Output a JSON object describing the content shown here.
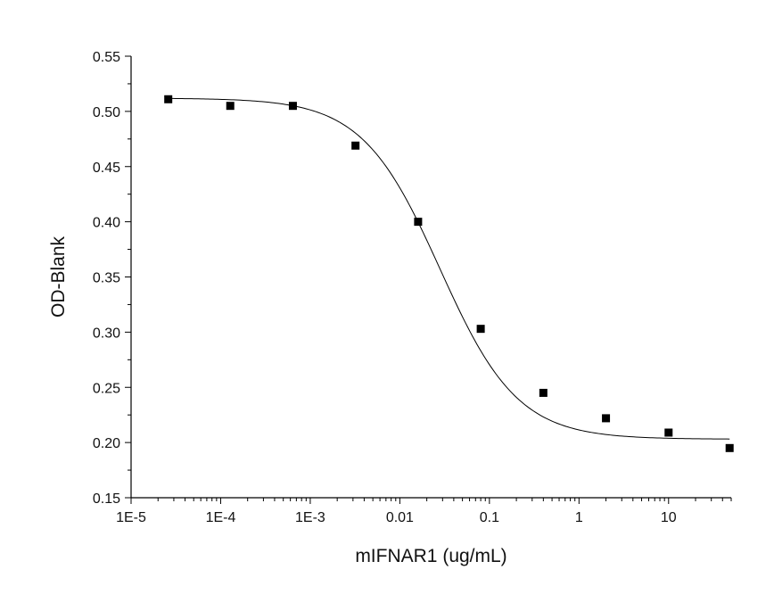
{
  "chart_data": {
    "type": "scatter",
    "title": "",
    "xlabel": "mIFNAR1 (ug/mL)",
    "ylabel": "OD-Blank",
    "x_scale": "log",
    "xlim": [
      1e-05,
      50
    ],
    "ylim": [
      0.15,
      0.55
    ],
    "grid": false,
    "legend": "none",
    "x_ticks": [
      1e-05,
      0.0001,
      0.001,
      0.01,
      0.1,
      1,
      10
    ],
    "x_tick_labels": [
      "1E-5",
      "1E-4",
      "1E-3",
      "0.01",
      "0.1",
      "1",
      "10"
    ],
    "y_ticks": [
      0.15,
      0.2,
      0.25,
      0.3,
      0.35,
      0.4,
      0.45,
      0.5,
      0.55
    ],
    "y_tick_labels": [
      "0.15",
      "0.20",
      "0.25",
      "0.30",
      "0.35",
      "0.40",
      "0.45",
      "0.50",
      "0.55"
    ],
    "series": [
      {
        "marker": "square",
        "color": "#000000",
        "points": [
          {
            "x": 2.6e-05,
            "y": 0.511
          },
          {
            "x": 0.000128,
            "y": 0.505
          },
          {
            "x": 0.00064,
            "y": 0.505
          },
          {
            "x": 0.0032,
            "y": 0.469
          },
          {
            "x": 0.016,
            "y": 0.4
          },
          {
            "x": 0.08,
            "y": 0.303
          },
          {
            "x": 0.4,
            "y": 0.245
          },
          {
            "x": 2,
            "y": 0.222
          },
          {
            "x": 10,
            "y": 0.209
          },
          {
            "x": 48,
            "y": 0.195
          }
        ]
      }
    ],
    "fit": {
      "model": "4PL",
      "top": 0.512,
      "bottom": 0.203,
      "ic50": 0.028,
      "hill": 1.0,
      "color": "#000000"
    }
  }
}
